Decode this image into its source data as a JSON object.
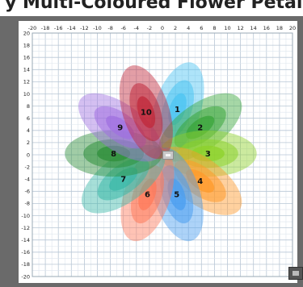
{
  "header": {
    "title_fragment": "y Multi-Coloured Flower Petal"
  },
  "chart_data": {
    "type": "scatter",
    "title": "",
    "xlabel": "",
    "ylabel": "",
    "xlim": [
      -20,
      20
    ],
    "ylim": [
      -20,
      20
    ],
    "grid": true,
    "x_ticks": [
      -20,
      -18,
      -16,
      -14,
      -12,
      -10,
      -8,
      -6,
      -4,
      -2,
      0,
      2,
      4,
      6,
      8,
      10,
      12,
      14,
      16,
      18,
      20
    ],
    "y_ticks": [
      20,
      18,
      16,
      14,
      12,
      10,
      8,
      6,
      4,
      2,
      0,
      -2,
      -4,
      -6,
      -8,
      -10,
      -12,
      -14,
      -16,
      -18,
      -20
    ],
    "petals": [
      {
        "label": "1",
        "x": 2.3,
        "y": 7.5,
        "angle_deg": 72,
        "color": "#4cc4f2"
      },
      {
        "label": "2",
        "x": 5.8,
        "y": 4.5,
        "angle_deg": 36,
        "color": "#3aa63a"
      },
      {
        "label": "3",
        "x": 7.0,
        "y": 0.2,
        "angle_deg": 0,
        "color": "#8dd12a"
      },
      {
        "label": "4",
        "x": 5.8,
        "y": -4.3,
        "angle_deg": -36,
        "color": "#ff9a2a"
      },
      {
        "label": "5",
        "x": 2.2,
        "y": -6.5,
        "angle_deg": -72,
        "color": "#4a9ef0"
      },
      {
        "label": "6",
        "x": -2.3,
        "y": -6.5,
        "angle_deg": 72,
        "color": "#ff7a5a"
      },
      {
        "label": "7",
        "x": -6.0,
        "y": -4.0,
        "angle_deg": 36,
        "color": "#3bb8a8"
      },
      {
        "label": "8",
        "x": -7.5,
        "y": 0.2,
        "angle_deg": 0,
        "color": "#2f8f3a"
      },
      {
        "label": "9",
        "x": -6.5,
        "y": 4.5,
        "angle_deg": -36,
        "color": "#a070e0"
      },
      {
        "label": "10",
        "x": -2.5,
        "y": 7.0,
        "angle_deg": -72,
        "color": "#c0283a"
      }
    ],
    "petal_radius": {
      "length": 7.5,
      "width": 3.8
    }
  }
}
